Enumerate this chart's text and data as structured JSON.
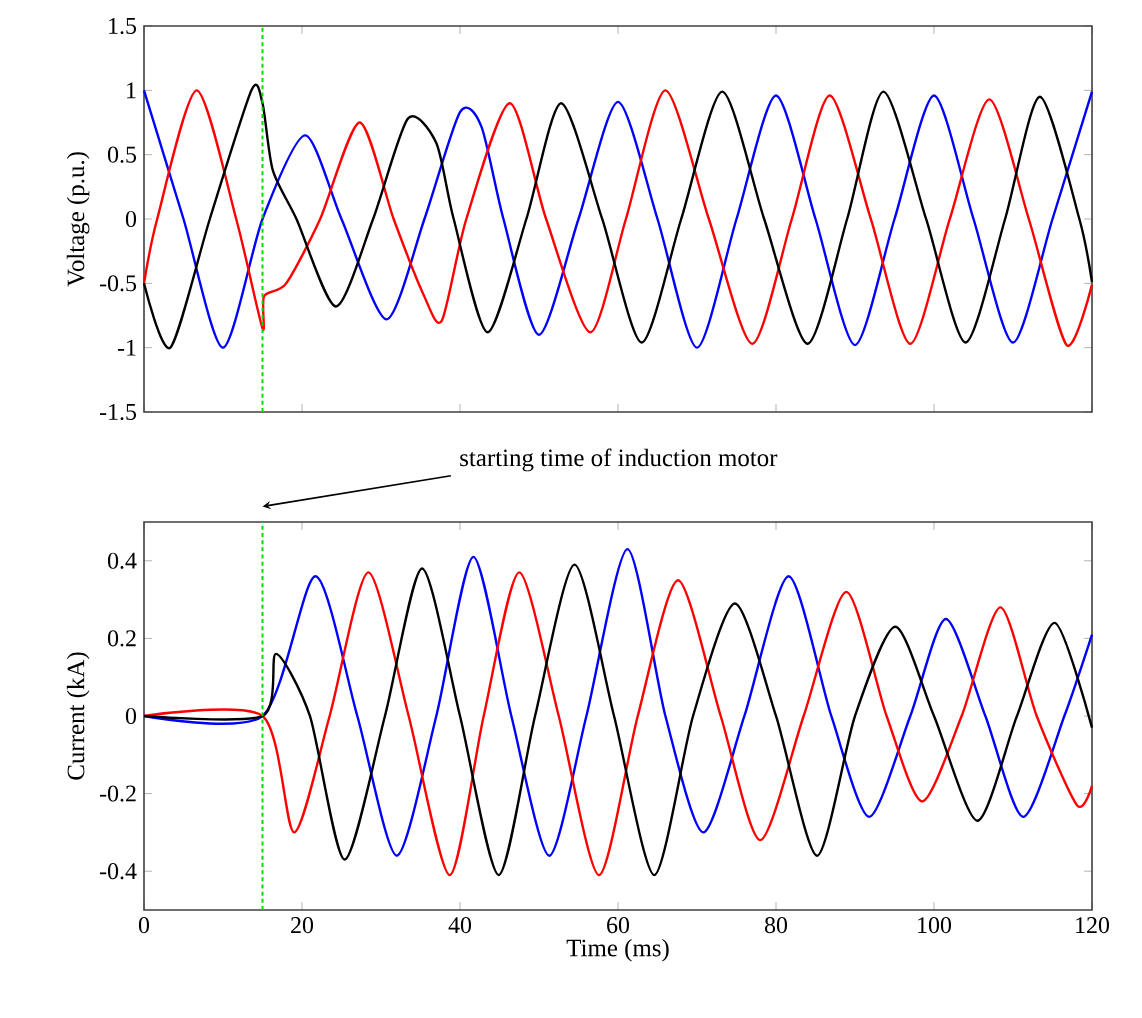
{
  "chart_data": [
    {
      "type": "line",
      "ylabel": "Voltage (p.u.)",
      "xlim": [
        0,
        120
      ],
      "ylim": [
        -1.5,
        1.5
      ],
      "xticks": [
        0,
        20,
        40,
        60,
        80,
        100,
        120
      ],
      "yticks": [
        -1.5,
        -1,
        -0.5,
        0,
        0.5,
        1,
        1.5
      ],
      "tick_labels": "y",
      "series": [
        {
          "color": "#0000ff",
          "x": [
            0,
            5,
            10,
            15,
            20.4,
            25,
            30.7,
            35.5,
            40,
            42.7,
            45.5,
            50,
            55,
            60,
            65,
            70,
            75,
            80,
            85,
            90,
            95,
            100,
            105,
            110,
            115,
            120
          ],
          "values": [
            1,
            0,
            -1,
            0,
            0.65,
            0,
            -0.78,
            0,
            0.83,
            0.72,
            0,
            -0.9,
            0,
            0.91,
            0,
            -1,
            0,
            0.96,
            0,
            -0.98,
            0,
            0.96,
            0,
            -0.96,
            0,
            0.99
          ]
        },
        {
          "color": "#ff0000",
          "x": [
            0,
            1.67,
            6.67,
            11.67,
            15,
            15.2,
            18,
            22.3,
            27.3,
            31.6,
            35.4,
            37.7,
            40.8,
            46.3,
            50.9,
            56.5,
            61,
            66,
            71.5,
            77,
            82,
            86.8,
            92,
            97,
            102,
            107,
            112,
            116.8,
            120
          ],
          "values": [
            -0.5,
            0,
            1,
            0,
            -0.85,
            -0.6,
            -0.5,
            0,
            0.75,
            0,
            -0.59,
            -0.79,
            0,
            0.9,
            0,
            -0.88,
            0,
            1,
            0,
            -0.97,
            0,
            0.96,
            0,
            -0.97,
            0,
            0.93,
            0,
            -0.98,
            -0.51
          ]
        },
        {
          "color": "#000000",
          "x": [
            0,
            3.33,
            8.33,
            13.6,
            15,
            16.3,
            19.3,
            24.3,
            29,
            33.4,
            37,
            39.2,
            43.5,
            48.4,
            52.8,
            58,
            63,
            68,
            73.2,
            78.5,
            84,
            89,
            93.6,
            99,
            104,
            109,
            113.4,
            118.4,
            120
          ],
          "values": [
            -0.5,
            -1,
            0,
            1,
            0.9,
            0.38,
            0,
            -0.68,
            0,
            0.78,
            0.59,
            0,
            -0.88,
            0,
            0.9,
            0,
            -0.96,
            0,
            0.99,
            0,
            -0.97,
            0,
            0.99,
            0,
            -0.96,
            0,
            0.95,
            0,
            -0.49
          ]
        }
      ],
      "ref_lines": [
        {
          "axis": "x",
          "value": 15,
          "color": "#00dd00",
          "line_style": "dotted"
        }
      ]
    },
    {
      "type": "line",
      "xlabel": "Time (ms)",
      "ylabel": "Current (kA)",
      "xlim": [
        0,
        120
      ],
      "ylim": [
        -0.5,
        0.5
      ],
      "xticks": [
        0,
        20,
        40,
        60,
        80,
        100,
        120
      ],
      "yticks": [
        -0.4,
        -0.2,
        0,
        0.2,
        0.4
      ],
      "series": [
        {
          "color": "#0000ff",
          "x": [
            0,
            15,
            21.7,
            27,
            32,
            37,
            41.7,
            46.5,
            51.3,
            56,
            61.2,
            66,
            70.8,
            76,
            81.6,
            87,
            91.8,
            97,
            101.5,
            106.5,
            111.3,
            116.5,
            120
          ],
          "values": [
            0,
            0,
            0.36,
            0,
            -0.36,
            0,
            0.41,
            0,
            -0.36,
            0,
            0.43,
            0,
            -0.3,
            0,
            0.36,
            0,
            -0.26,
            0,
            0.25,
            0,
            -0.26,
            0,
            0.21
          ]
        },
        {
          "color": "#ff0000",
          "x": [
            0,
            15,
            19,
            23.5,
            28.4,
            33.5,
            38.7,
            43,
            47.5,
            52.5,
            57.6,
            62.5,
            67.6,
            73,
            78,
            83.5,
            88.9,
            94,
            98.5,
            103.5,
            108.4,
            113,
            118.1,
            120
          ],
          "values": [
            0,
            0,
            -0.3,
            0,
            0.37,
            0,
            -0.41,
            0,
            0.37,
            0,
            -0.41,
            0,
            0.35,
            0,
            -0.32,
            0,
            0.32,
            0,
            -0.22,
            0,
            0.28,
            0,
            -0.23,
            -0.18
          ]
        },
        {
          "color": "#000000",
          "x": [
            0,
            15,
            16.7,
            21,
            25.4,
            30.5,
            35.2,
            40,
            44.9,
            49.5,
            54.5,
            59.5,
            64.6,
            69.5,
            74.8,
            80,
            85.2,
            90,
            95.1,
            100,
            105.5,
            110.5,
            115.3,
            120
          ],
          "values": [
            0,
            0,
            0.16,
            0,
            -0.37,
            0,
            0.38,
            0,
            -0.41,
            0,
            0.39,
            0,
            -0.41,
            0,
            0.29,
            0,
            -0.36,
            0,
            0.23,
            0,
            -0.27,
            0,
            0.24,
            -0.03
          ]
        }
      ],
      "ref_lines": [
        {
          "axis": "x",
          "value": 15,
          "color": "#00dd00",
          "line_style": "dotted"
        }
      ],
      "annotations": [
        "starting time of induction motor"
      ]
    }
  ]
}
